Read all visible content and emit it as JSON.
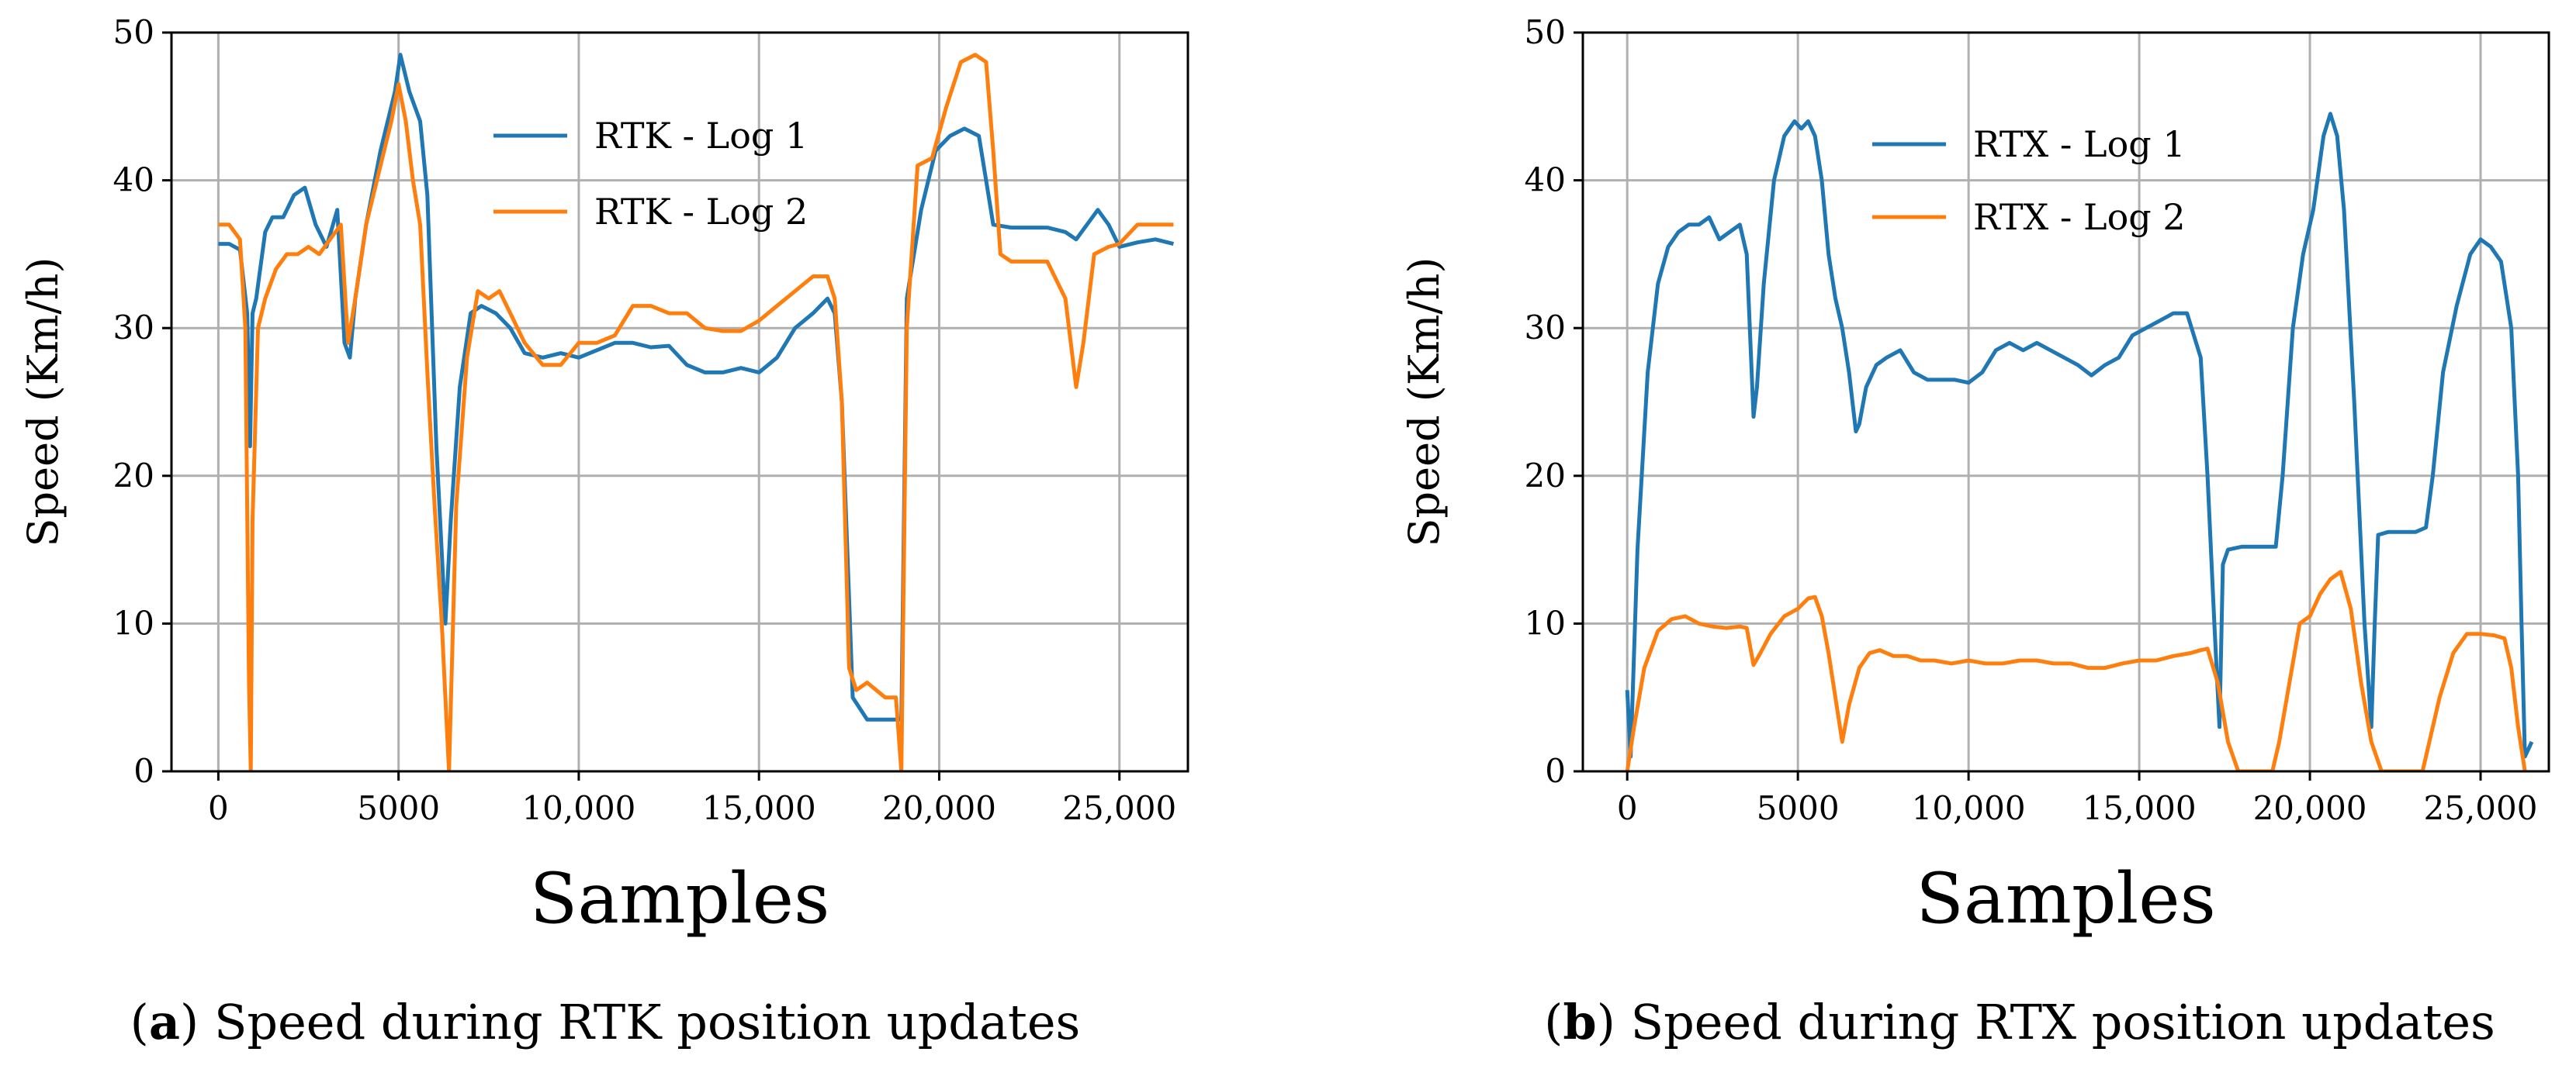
{
  "colors": {
    "series1": "#1f77b4",
    "series2": "#ff7f0e"
  },
  "chart_data": [
    {
      "type": "line",
      "panel_label": "a",
      "caption": "Speed during RTK position updates",
      "title": "",
      "xlabel": "Samples",
      "ylabel": "Speed (Km/h)",
      "xlim": [
        -1300,
        26900
      ],
      "ylim": [
        0,
        50
      ],
      "xticks": [
        0,
        5000,
        10000,
        15000,
        20000,
        25000
      ],
      "xtick_labels": [
        "0",
        "5000",
        "10,000",
        "15,000",
        "20,000",
        "25,000"
      ],
      "yticks": [
        0,
        10,
        20,
        30,
        40,
        50
      ],
      "ytick_labels": [
        "0",
        "10",
        "20",
        "30",
        "40",
        "50"
      ],
      "legend_position": "upper-center",
      "series": [
        {
          "name": "RTK - Log 1",
          "x": [
            0,
            300,
            600,
            800,
            880,
            950,
            1050,
            1300,
            1500,
            1800,
            2100,
            2400,
            2700,
            3000,
            3300,
            3500,
            3650,
            3800,
            4100,
            4500,
            4900,
            5050,
            5300,
            5600,
            5800,
            6050,
            6300,
            6450,
            6700,
            7000,
            7300,
            7700,
            8100,
            8500,
            9000,
            9500,
            10000,
            10500,
            11000,
            11500,
            12000,
            12500,
            13000,
            13500,
            14000,
            14500,
            15000,
            15500,
            16000,
            16500,
            16900,
            17100,
            17300,
            17600,
            18000,
            18500,
            18900,
            18950,
            19100,
            19500,
            19900,
            20300,
            20700,
            21100,
            21300,
            21500,
            22000,
            22500,
            23000,
            23500,
            23800,
            24100,
            24400,
            24700,
            25000,
            25500,
            26000,
            26500
          ],
          "values": [
            35.7,
            35.7,
            35.3,
            31,
            22,
            31,
            32,
            36.5,
            37.5,
            37.5,
            39,
            39.5,
            37,
            35.5,
            38,
            29,
            28,
            32,
            37,
            42,
            46,
            48.5,
            46,
            44,
            39,
            22,
            10,
            17,
            26,
            31,
            31.5,
            31,
            30,
            28.3,
            28,
            28.3,
            28,
            28.5,
            29,
            29,
            28.7,
            28.8,
            27.5,
            27,
            27,
            27.3,
            27,
            28,
            30,
            31,
            32,
            31,
            25,
            5,
            3.5,
            3.5,
            3.5,
            3.5,
            32,
            38,
            42,
            43,
            43.5,
            43,
            40,
            37,
            36.8,
            36.8,
            36.8,
            36.5,
            36,
            37,
            38,
            37,
            35.5,
            35.8,
            36,
            35.7
          ]
        },
        {
          "name": "RTK - Log 2",
          "x": [
            0,
            300,
            600,
            750,
            850,
            900,
            950,
            1100,
            1300,
            1600,
            1900,
            2200,
            2500,
            2800,
            3100,
            3400,
            3600,
            3800,
            4100,
            4500,
            4800,
            5000,
            5200,
            5400,
            5600,
            5800,
            6000,
            6200,
            6300,
            6400,
            6600,
            6900,
            7200,
            7500,
            7800,
            8100,
            8500,
            9000,
            9500,
            10000,
            10500,
            11000,
            11500,
            12000,
            12500,
            13000,
            13500,
            14000,
            14500,
            15000,
            15500,
            16000,
            16500,
            16900,
            17100,
            17300,
            17500,
            17700,
            18000,
            18500,
            18800,
            18950,
            19100,
            19400,
            19800,
            20200,
            20600,
            21000,
            21300,
            21500,
            21700,
            22000,
            22500,
            23000,
            23500,
            23800,
            24000,
            24300,
            24700,
            25000,
            25500,
            26000,
            26500
          ],
          "values": [
            37,
            37,
            36,
            30,
            6,
            0,
            17,
            30,
            32,
            34,
            35,
            35,
            35.5,
            35,
            36,
            37,
            29,
            32,
            37,
            41,
            44,
            46.5,
            44,
            40,
            37,
            27,
            18,
            10,
            5,
            0,
            18,
            28,
            32.5,
            32,
            32.5,
            31,
            29,
            27.5,
            27.5,
            29,
            29,
            29.5,
            31.5,
            31.5,
            31,
            31,
            30,
            29.8,
            29.8,
            30.5,
            31.5,
            32.5,
            33.5,
            33.5,
            32,
            25,
            7,
            5.5,
            6,
            5,
            5,
            0,
            30,
            41,
            41.5,
            45,
            48,
            48.5,
            48,
            42,
            35,
            34.5,
            34.5,
            34.5,
            32,
            26,
            29,
            35,
            35.5,
            35.7,
            37,
            37,
            37
          ]
        }
      ]
    },
    {
      "type": "line",
      "panel_label": "b",
      "caption": "Speed during RTX position updates",
      "title": "",
      "xlabel": "Samples",
      "ylabel": "Speed (Km/h)",
      "xlim": [
        -1300,
        27000
      ],
      "ylim": [
        0,
        50
      ],
      "xticks": [
        0,
        5000,
        10000,
        15000,
        20000,
        25000
      ],
      "xtick_labels": [
        "0",
        "5000",
        "10,000",
        "15,000",
        "20,000",
        "25,000"
      ],
      "yticks": [
        0,
        10,
        20,
        30,
        40,
        50
      ],
      "ytick_labels": [
        "0",
        "10",
        "20",
        "30",
        "40",
        "50"
      ],
      "legend_position": "upper-center",
      "series": [
        {
          "name": "RTX - Log 1",
          "x": [
            0,
            100,
            300,
            600,
            900,
            1200,
            1500,
            1800,
            2100,
            2400,
            2700,
            3000,
            3300,
            3500,
            3700,
            3800,
            4000,
            4300,
            4600,
            4900,
            5100,
            5300,
            5500,
            5700,
            5900,
            6100,
            6300,
            6500,
            6700,
            6800,
            7000,
            7300,
            7600,
            8000,
            8400,
            8800,
            9200,
            9600,
            10000,
            10400,
            10800,
            11200,
            11600,
            12000,
            12400,
            12800,
            13200,
            13600,
            14000,
            14400,
            14800,
            15200,
            15600,
            16000,
            16400,
            16800,
            17000,
            17200,
            17350,
            17450,
            17600,
            18000,
            18500,
            19000,
            19200,
            19500,
            19800,
            20100,
            20400,
            20600,
            20800,
            21000,
            21300,
            21600,
            21800,
            21900,
            22000,
            22300,
            22700,
            23100,
            23400,
            23600,
            23900,
            24300,
            24700,
            25000,
            25300,
            25600,
            25900,
            26100,
            26200,
            26300,
            26500
          ],
          "values": [
            5.5,
            1,
            15,
            27,
            33,
            35.5,
            36.5,
            37,
            37,
            37.5,
            36,
            36.5,
            37,
            35,
            24,
            26,
            33,
            40,
            43,
            44,
            43.5,
            44,
            43,
            40,
            35,
            32,
            30,
            27,
            23,
            23.5,
            26,
            27.5,
            28,
            28.5,
            27,
            26.5,
            26.5,
            26.5,
            26.3,
            27,
            28.5,
            29,
            28.5,
            29,
            28.5,
            28,
            27.5,
            26.8,
            27.5,
            28,
            29.5,
            30,
            30.5,
            31,
            31,
            28,
            20,
            10,
            3,
            14,
            15,
            15.2,
            15.2,
            15.2,
            20,
            30,
            35,
            38,
            43,
            44.5,
            43,
            38,
            25,
            10,
            3,
            10,
            16,
            16.2,
            16.2,
            16.2,
            16.5,
            20,
            27,
            31.5,
            35,
            36,
            35.5,
            34.5,
            30,
            20,
            10,
            1,
            2
          ]
        },
        {
          "name": "RTX - Log 2",
          "x": [
            0,
            200,
            500,
            900,
            1300,
            1700,
            2100,
            2500,
            2900,
            3300,
            3500,
            3700,
            3900,
            4200,
            4600,
            5000,
            5300,
            5500,
            5700,
            5900,
            6100,
            6300,
            6500,
            6800,
            7100,
            7400,
            7800,
            8200,
            8600,
            9000,
            9500,
            10000,
            10500,
            11000,
            11500,
            12000,
            12500,
            13000,
            13500,
            14000,
            14500,
            15000,
            15500,
            16000,
            16500,
            16800,
            17000,
            17300,
            17600,
            17900,
            18300,
            18700,
            18900,
            19100,
            19400,
            19700,
            20000,
            20300,
            20600,
            20900,
            21200,
            21500,
            21800,
            22100,
            22400,
            23000,
            23300,
            23500,
            23800,
            24200,
            24600,
            25000,
            25400,
            25700,
            25900,
            26100,
            26300
          ],
          "values": [
            0,
            3,
            7,
            9.5,
            10.3,
            10.5,
            10,
            9.8,
            9.7,
            9.8,
            9.7,
            7.2,
            8,
            9.3,
            10.5,
            11,
            11.7,
            11.8,
            10.5,
            8,
            5,
            2,
            4.5,
            7,
            8,
            8.2,
            7.8,
            7.8,
            7.5,
            7.5,
            7.3,
            7.5,
            7.3,
            7.3,
            7.5,
            7.5,
            7.3,
            7.3,
            7,
            7,
            7.3,
            7.5,
            7.5,
            7.8,
            8,
            8.2,
            8.3,
            6,
            2,
            0,
            0,
            0,
            0,
            2,
            6,
            10,
            10.5,
            12,
            13,
            13.5,
            11,
            6,
            2,
            0,
            0,
            0,
            0,
            2,
            5,
            8,
            9.3,
            9.3,
            9.2,
            9,
            7,
            3,
            0
          ]
        }
      ]
    }
  ]
}
